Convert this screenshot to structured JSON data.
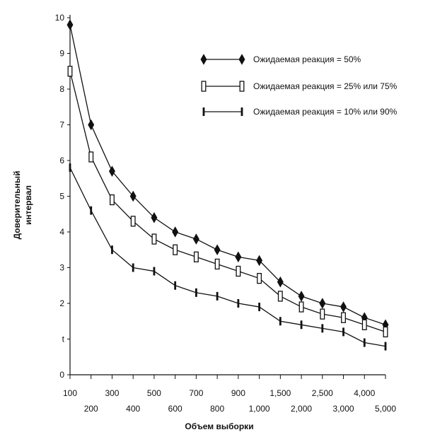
{
  "chart_data": {
    "type": "line",
    "title": "",
    "xlabel": "Объем выборки",
    "ylabel_lines": [
      "Доверительный",
      "интервал"
    ],
    "categories": [
      "100",
      "200",
      "300",
      "400",
      "500",
      "600",
      "700",
      "800",
      "900",
      "1,000",
      "1,500",
      "2,000",
      "2,500",
      "3,000",
      "4,000",
      "5,000"
    ],
    "yticks": [
      "0",
      "t",
      "2",
      "3",
      "4",
      "5",
      "6",
      "7",
      "8",
      "9",
      "10"
    ],
    "ylim": [
      0,
      10
    ],
    "grid": false,
    "legend_position": "top-right",
    "series": [
      {
        "name": "Ожидаемая реакция = 50%",
        "marker": "diamond",
        "values": [
          9.8,
          7.0,
          5.7,
          5.0,
          4.4,
          4.0,
          3.8,
          3.5,
          3.3,
          3.2,
          2.6,
          2.2,
          2.0,
          1.9,
          1.6,
          1.4
        ]
      },
      {
        "name": "Ожидаемая реакция = 25% или 75%",
        "marker": "open-rect",
        "values": [
          8.5,
          6.1,
          4.9,
          4.3,
          3.8,
          3.5,
          3.3,
          3.1,
          2.9,
          2.7,
          2.2,
          1.9,
          1.7,
          1.6,
          1.4,
          1.2
        ]
      },
      {
        "name": "Ожидаемая реакция = 10% или 90%",
        "marker": "filled-bar",
        "values": [
          5.8,
          4.6,
          3.5,
          3.0,
          2.9,
          2.5,
          2.3,
          2.2,
          2.0,
          1.9,
          1.5,
          1.4,
          1.3,
          1.2,
          0.9,
          0.8
        ]
      }
    ]
  }
}
